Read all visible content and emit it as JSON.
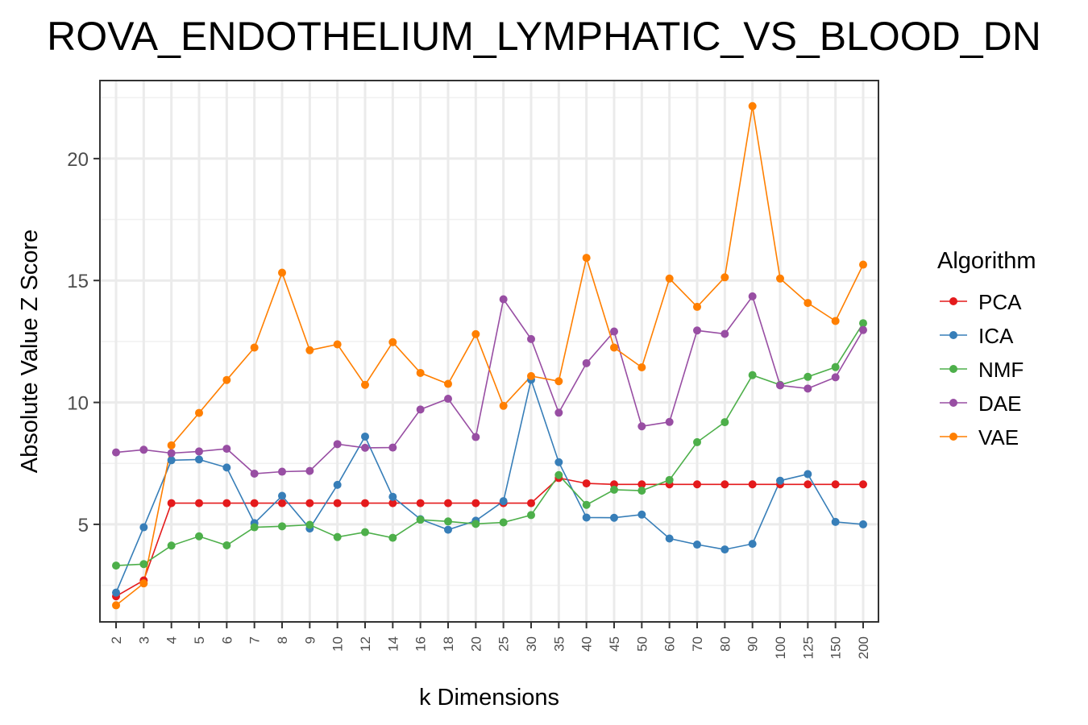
{
  "chart_data": {
    "type": "line",
    "title": "ROVA_ENDOTHELIUM_LYMPHATIC_VS_BLOOD_DN",
    "xlabel": "k Dimensions",
    "ylabel": "Absolute Value Z Score",
    "categories": [
      "2",
      "3",
      "4",
      "5",
      "6",
      "7",
      "8",
      "9",
      "10",
      "12",
      "14",
      "16",
      "18",
      "20",
      "25",
      "30",
      "35",
      "40",
      "45",
      "50",
      "60",
      "70",
      "80",
      "90",
      "100",
      "125",
      "150",
      "200"
    ],
    "yticks": [
      5,
      10,
      15,
      20
    ],
    "ylim": [
      1.0,
      23.2
    ],
    "legend_title": "Algorithm",
    "legend_position": "right",
    "grid": true,
    "series": [
      {
        "name": "PCA",
        "color": "#e41a1c",
        "values": [
          2.05,
          2.7,
          5.87,
          5.87,
          5.87,
          5.87,
          5.87,
          5.87,
          5.87,
          5.87,
          5.87,
          5.87,
          5.87,
          5.87,
          5.87,
          5.87,
          6.9,
          6.68,
          6.64,
          6.64,
          6.64,
          6.64,
          6.64,
          6.64,
          6.64,
          6.64,
          6.64,
          6.64
        ]
      },
      {
        "name": "ICA",
        "color": "#377eb8",
        "values": [
          2.2,
          4.88,
          7.63,
          7.66,
          7.33,
          5.05,
          6.17,
          4.83,
          6.62,
          8.6,
          6.13,
          5.21,
          4.78,
          5.15,
          5.95,
          10.93,
          7.55,
          5.28,
          5.27,
          5.4,
          4.42,
          4.17,
          3.97,
          4.2,
          6.79,
          7.06,
          5.1,
          5.0
        ]
      },
      {
        "name": "NMF",
        "color": "#4daf4a",
        "values": [
          3.31,
          3.37,
          4.13,
          4.51,
          4.14,
          4.88,
          4.92,
          4.98,
          4.48,
          4.68,
          4.45,
          5.19,
          5.12,
          5.02,
          5.08,
          5.38,
          7.02,
          5.8,
          6.42,
          6.38,
          6.82,
          8.37,
          9.19,
          11.12,
          10.72,
          11.05,
          11.45,
          13.25
        ]
      },
      {
        "name": "DAE",
        "color": "#984ea3",
        "values": [
          7.95,
          8.06,
          7.92,
          7.99,
          8.1,
          7.08,
          7.16,
          7.19,
          8.29,
          8.14,
          8.15,
          9.71,
          10.15,
          8.58,
          14.23,
          12.6,
          9.58,
          11.61,
          12.91,
          9.02,
          9.2,
          12.95,
          12.81,
          14.35,
          10.7,
          10.57,
          11.03,
          12.97
        ]
      },
      {
        "name": "VAE",
        "color": "#ff7f00",
        "values": [
          1.68,
          2.58,
          8.24,
          9.57,
          10.92,
          12.25,
          15.32,
          12.14,
          12.38,
          10.72,
          12.47,
          11.21,
          10.76,
          12.8,
          9.86,
          11.08,
          10.87,
          15.93,
          12.25,
          11.44,
          15.08,
          13.92,
          15.13,
          22.15,
          15.08,
          14.08,
          13.34,
          15.65
        ]
      }
    ]
  }
}
